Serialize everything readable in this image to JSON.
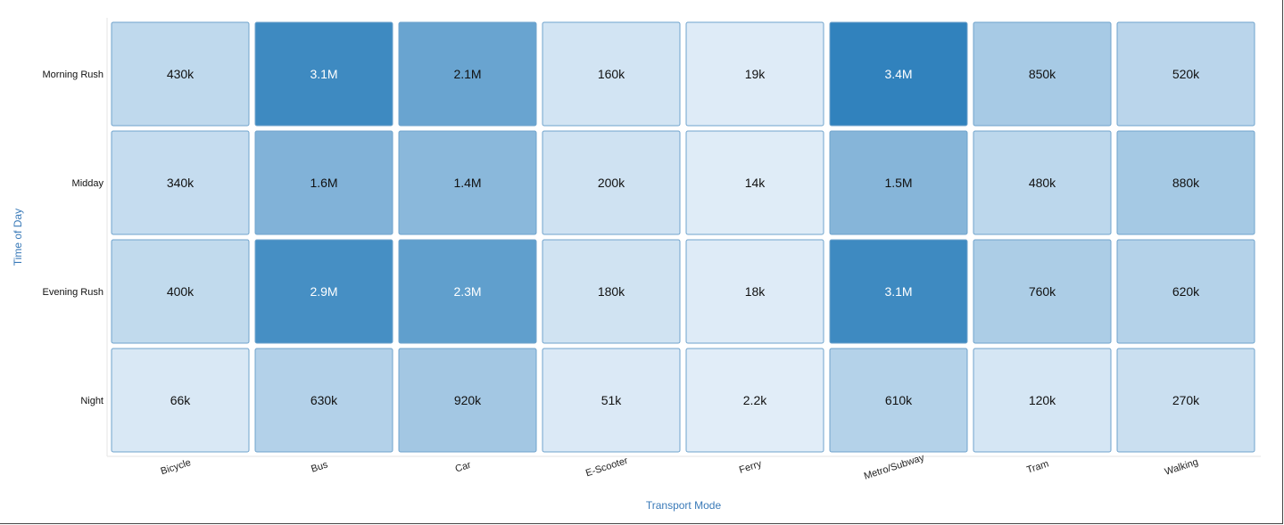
{
  "chart_data": {
    "type": "heatmap",
    "title": "",
    "xlabel": "Transport Mode",
    "ylabel": "Time of Day",
    "x_categories": [
      "Bicycle",
      "Bus",
      "Car",
      "E-Scooter",
      "Ferry",
      "Metro/Subway",
      "Tram",
      "Walking"
    ],
    "y_categories": [
      "Morning Rush",
      "Midday",
      "Evening Rush",
      "Night"
    ],
    "values": [
      [
        430000,
        3100000,
        2100000,
        160000,
        19000,
        3400000,
        850000,
        520000
      ],
      [
        340000,
        1600000,
        1400000,
        200000,
        14000,
        1500000,
        480000,
        880000
      ],
      [
        400000,
        2900000,
        2300000,
        180000,
        18000,
        3100000,
        760000,
        620000
      ],
      [
        66000,
        630000,
        920000,
        51000,
        2200,
        610000,
        120000,
        270000
      ]
    ],
    "labels": [
      [
        "430k",
        "3.1M",
        "2.1M",
        "160k",
        "19k",
        "3.4M",
        "850k",
        "520k"
      ],
      [
        "340k",
        "1.6M",
        "1.4M",
        "200k",
        "14k",
        "1.5M",
        "480k",
        "880k"
      ],
      [
        "400k",
        "2.9M",
        "2.3M",
        "180k",
        "18k",
        "3.1M",
        "760k",
        "620k"
      ],
      [
        "66k",
        "630k",
        "920k",
        "51k",
        "2.2k",
        "610k",
        "120k",
        "270k"
      ]
    ],
    "color_scale": {
      "low": "#e1edf8",
      "high": "#3182bd",
      "cell_border": "#6fa3cc"
    },
    "axis_title_color": "#3a7ab8"
  }
}
